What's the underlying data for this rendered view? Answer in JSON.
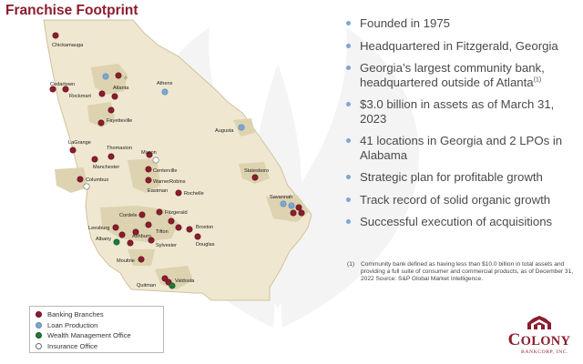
{
  "title": "Franchise Footprint",
  "colors": {
    "banking": "#8b1d2e",
    "loan": "#7aa7d2",
    "wealth": "#1f7a3a",
    "insurance": "#ffffff",
    "map_fill": "#efe7cf",
    "region_fill": "#ddd3b0",
    "accent": "#8b1d2e",
    "bullet_dot": "#7aa7d2"
  },
  "map": {
    "labels": [
      {
        "name": "chickamauga",
        "text": "Chickamauga"
      },
      {
        "name": "cedartown",
        "text": "Cedartown"
      },
      {
        "name": "rockmart",
        "text": "Rockmart"
      },
      {
        "name": "atlanta",
        "text": "Atlanta"
      },
      {
        "name": "athens",
        "text": "Athens"
      },
      {
        "name": "fayetteville",
        "text": "Fayetteville"
      },
      {
        "name": "augusta",
        "text": "Augusta"
      },
      {
        "name": "lagrange",
        "text": "LaGrange"
      },
      {
        "name": "thomaston",
        "text": "Thomaston"
      },
      {
        "name": "macon",
        "text": "Macon"
      },
      {
        "name": "manchester",
        "text": "Manchester"
      },
      {
        "name": "centerville",
        "text": "Centerville"
      },
      {
        "name": "columbus",
        "text": "Columbus"
      },
      {
        "name": "warner-robins",
        "text": "WarnerRobins"
      },
      {
        "name": "statesboro",
        "text": "Statesboro"
      },
      {
        "name": "eastman",
        "text": "Eastman"
      },
      {
        "name": "rochelle",
        "text": "Rochelle"
      },
      {
        "name": "savannah",
        "text": "Savannah"
      },
      {
        "name": "cordele",
        "text": "Cordele"
      },
      {
        "name": "fitzgerald",
        "text": "Fitzgerald"
      },
      {
        "name": "leesburg",
        "text": "Leesburg"
      },
      {
        "name": "tifton",
        "text": "Tifton"
      },
      {
        "name": "broxton",
        "text": "Broxton"
      },
      {
        "name": "albany",
        "text": "Albany"
      },
      {
        "name": "ashburn",
        "text": "Ashburn"
      },
      {
        "name": "sylvester",
        "text": "Sylvester"
      },
      {
        "name": "douglas",
        "text": "Douglas"
      },
      {
        "name": "moultrie",
        "text": "Moultrie"
      },
      {
        "name": "valdosta",
        "text": "Valdosta"
      },
      {
        "name": "quitman",
        "text": "Quitman"
      }
    ]
  },
  "legend": {
    "items": [
      {
        "label": "Banking Branches",
        "type": "banking"
      },
      {
        "label": "Loan Production",
        "type": "loan"
      },
      {
        "label": "Wealth Management Office",
        "type": "wealth"
      },
      {
        "label": "Insurance Office",
        "type": "insurance"
      }
    ]
  },
  "bullets": [
    {
      "text": "Founded in 1975"
    },
    {
      "text": "Headquartered in Fitzgerald, Georgia"
    },
    {
      "text": "Georgia’s largest community bank, headquartered outside of Atlanta",
      "sup": "(1)"
    },
    {
      "text": "$3.0 billion in assets as of March 31, 2023"
    },
    {
      "text": "41 locations in Georgia and 2 LPOs in Alabama"
    },
    {
      "text": "Strategic plan for profitable growth"
    },
    {
      "text": "Track record of solid organic growth"
    },
    {
      "text": "Successful execution of acquisitions"
    }
  ],
  "footnote": {
    "number": "(1)",
    "text": "Community bank defined as having less than $10.0 billion in total assets and providing a full suite of consumer and commercial products, as of December 31, 2022  Source: S&P Global Market Intelligence."
  },
  "logo": {
    "name_first": "C",
    "name_rest": "OLONY",
    "subtitle": "BANKCORP, INC."
  }
}
